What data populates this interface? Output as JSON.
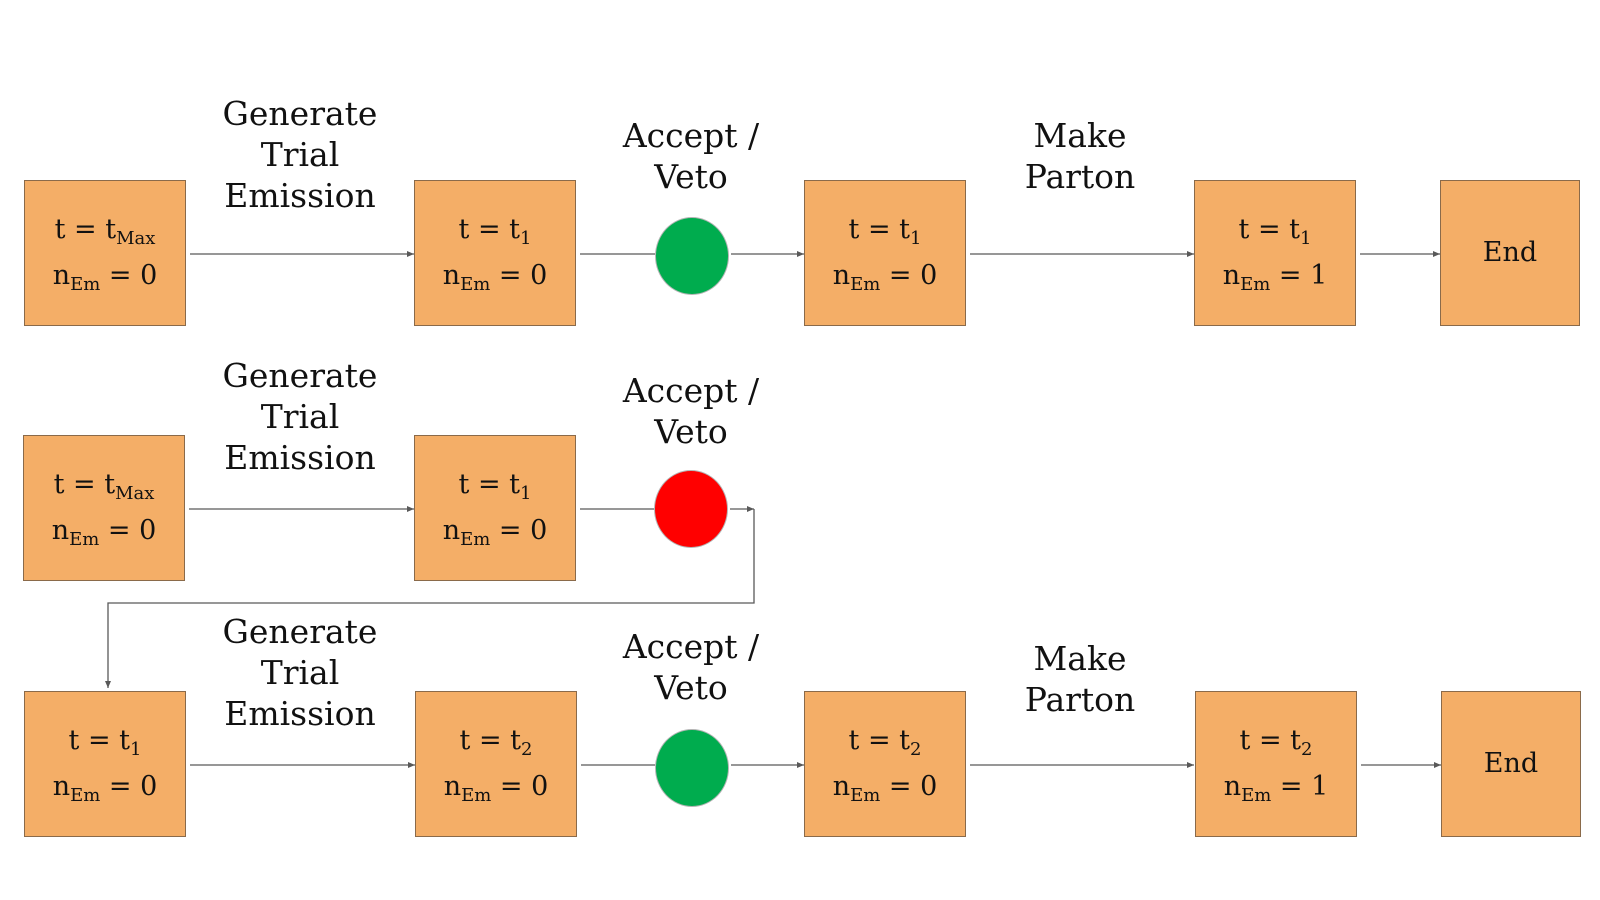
{
  "labels": {
    "generate": [
      "Generate",
      "Trial",
      "Emission"
    ],
    "accept": [
      "Accept /",
      "Veto"
    ],
    "make": [
      "Make",
      "Parton"
    ]
  },
  "rows": [
    {
      "boxes": [
        {
          "t": "t",
          "eq": "=",
          "tv": "t",
          "tsub": "Max",
          "n": "n",
          "nsub": "Em",
          "neq": "=",
          "nval": "0"
        },
        {
          "t": "t",
          "eq": "=",
          "tv": "t",
          "tsub": "1",
          "n": "n",
          "nsub": "Em",
          "neq": "=",
          "nval": "0"
        },
        {
          "t": "t",
          "eq": "=",
          "tv": "t",
          "tsub": "1",
          "n": "n",
          "nsub": "Em",
          "neq": "=",
          "nval": "0"
        },
        {
          "t": "t",
          "eq": "=",
          "tv": "t",
          "tsub": "1",
          "n": "n",
          "nsub": "Em",
          "neq": "=",
          "nval": "1"
        }
      ],
      "end": "End",
      "decision": "accept",
      "decision_color": "#00ac4e"
    },
    {
      "boxes": [
        {
          "t": "t",
          "eq": "=",
          "tv": "t",
          "tsub": "Max",
          "n": "n",
          "nsub": "Em",
          "neq": "=",
          "nval": "0"
        },
        {
          "t": "t",
          "eq": "=",
          "tv": "t",
          "tsub": "1",
          "n": "n",
          "nsub": "Em",
          "neq": "=",
          "nval": "0"
        }
      ],
      "decision": "veto",
      "decision_color": "#ff0000"
    },
    {
      "boxes": [
        {
          "t": "t",
          "eq": "=",
          "tv": "t",
          "tsub": "1",
          "n": "n",
          "nsub": "Em",
          "neq": "=",
          "nval": "0"
        },
        {
          "t": "t",
          "eq": "=",
          "tv": "t",
          "tsub": "2",
          "n": "n",
          "nsub": "Em",
          "neq": "=",
          "nval": "0"
        },
        {
          "t": "t",
          "eq": "=",
          "tv": "t",
          "tsub": "2",
          "n": "n",
          "nsub": "Em",
          "neq": "=",
          "nval": "0"
        },
        {
          "t": "t",
          "eq": "=",
          "tv": "t",
          "tsub": "2",
          "n": "n",
          "nsub": "Em",
          "neq": "=",
          "nval": "1"
        }
      ],
      "end": "End",
      "decision": "accept",
      "decision_color": "#00ac4e"
    }
  ],
  "colors": {
    "box_fill": "#f4ae67",
    "box_border": "#8a6a4a",
    "arrow": "#595959",
    "accept": "#00ac4e",
    "veto": "#ff0000"
  }
}
